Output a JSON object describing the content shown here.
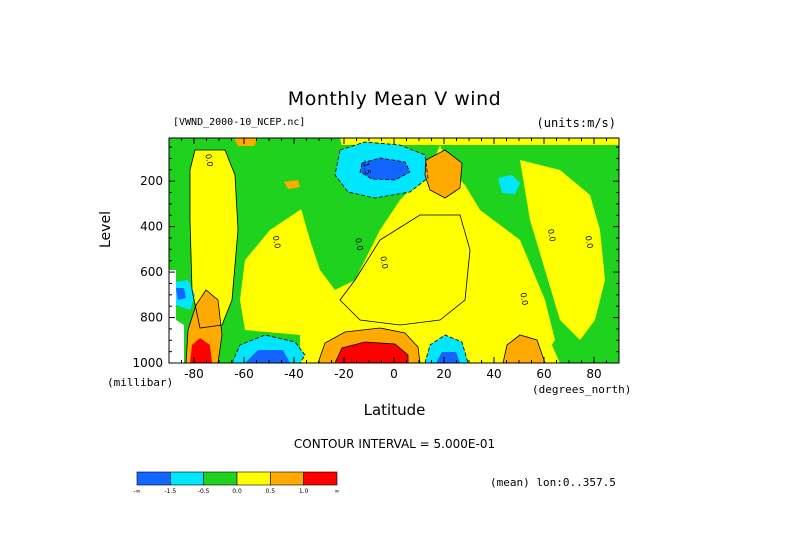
{
  "chart_data": {
    "type": "heatmap",
    "title": "Monthly Mean V wind",
    "dataset": "[VWND_2000-10_NCEP.nc]",
    "units": "(units:m/s)",
    "xlabel": "Latitude",
    "x_unit": "(degrees_north)",
    "ylabel": "Level",
    "y_unit": "(millibar)",
    "xlim": [
      -90,
      90
    ],
    "ylim": [
      1000,
      10
    ],
    "x_ticks": [
      -80,
      -60,
      -40,
      -20,
      0,
      20,
      40,
      60,
      80
    ],
    "y_ticks": [
      200,
      400,
      600,
      800,
      1000
    ],
    "contour_interval": "CONTOUR INTERVAL = 5.000E-01",
    "mean_note": "(mean) lon:0..357.5",
    "colorbar": {
      "levels": [
        "-∞",
        "-1.5",
        "-0.5",
        "0.0",
        "0.5",
        "1.0",
        "∞"
      ],
      "colors": [
        "#1464ff",
        "#00e6ff",
        "#1ed21e",
        "#ffff00",
        "#ffaa00",
        "#ff0000"
      ]
    },
    "contour_labels": [
      {
        "lat": -75,
        "lev": 110,
        "text": "0.0"
      },
      {
        "lat": -48,
        "lev": 470,
        "text": "0.0"
      },
      {
        "lat": -15,
        "lev": 480,
        "text": "0.0"
      },
      {
        "lat": -5,
        "lev": 560,
        "text": "0.0"
      },
      {
        "lat": 51,
        "lev": 720,
        "text": "0.0"
      },
      {
        "lat": 62,
        "lev": 440,
        "text": "0.0"
      },
      {
        "lat": 77,
        "lev": 470,
        "text": "0.0"
      },
      {
        "lat": -12,
        "lev": 140,
        "text": "-1.5"
      }
    ]
  }
}
